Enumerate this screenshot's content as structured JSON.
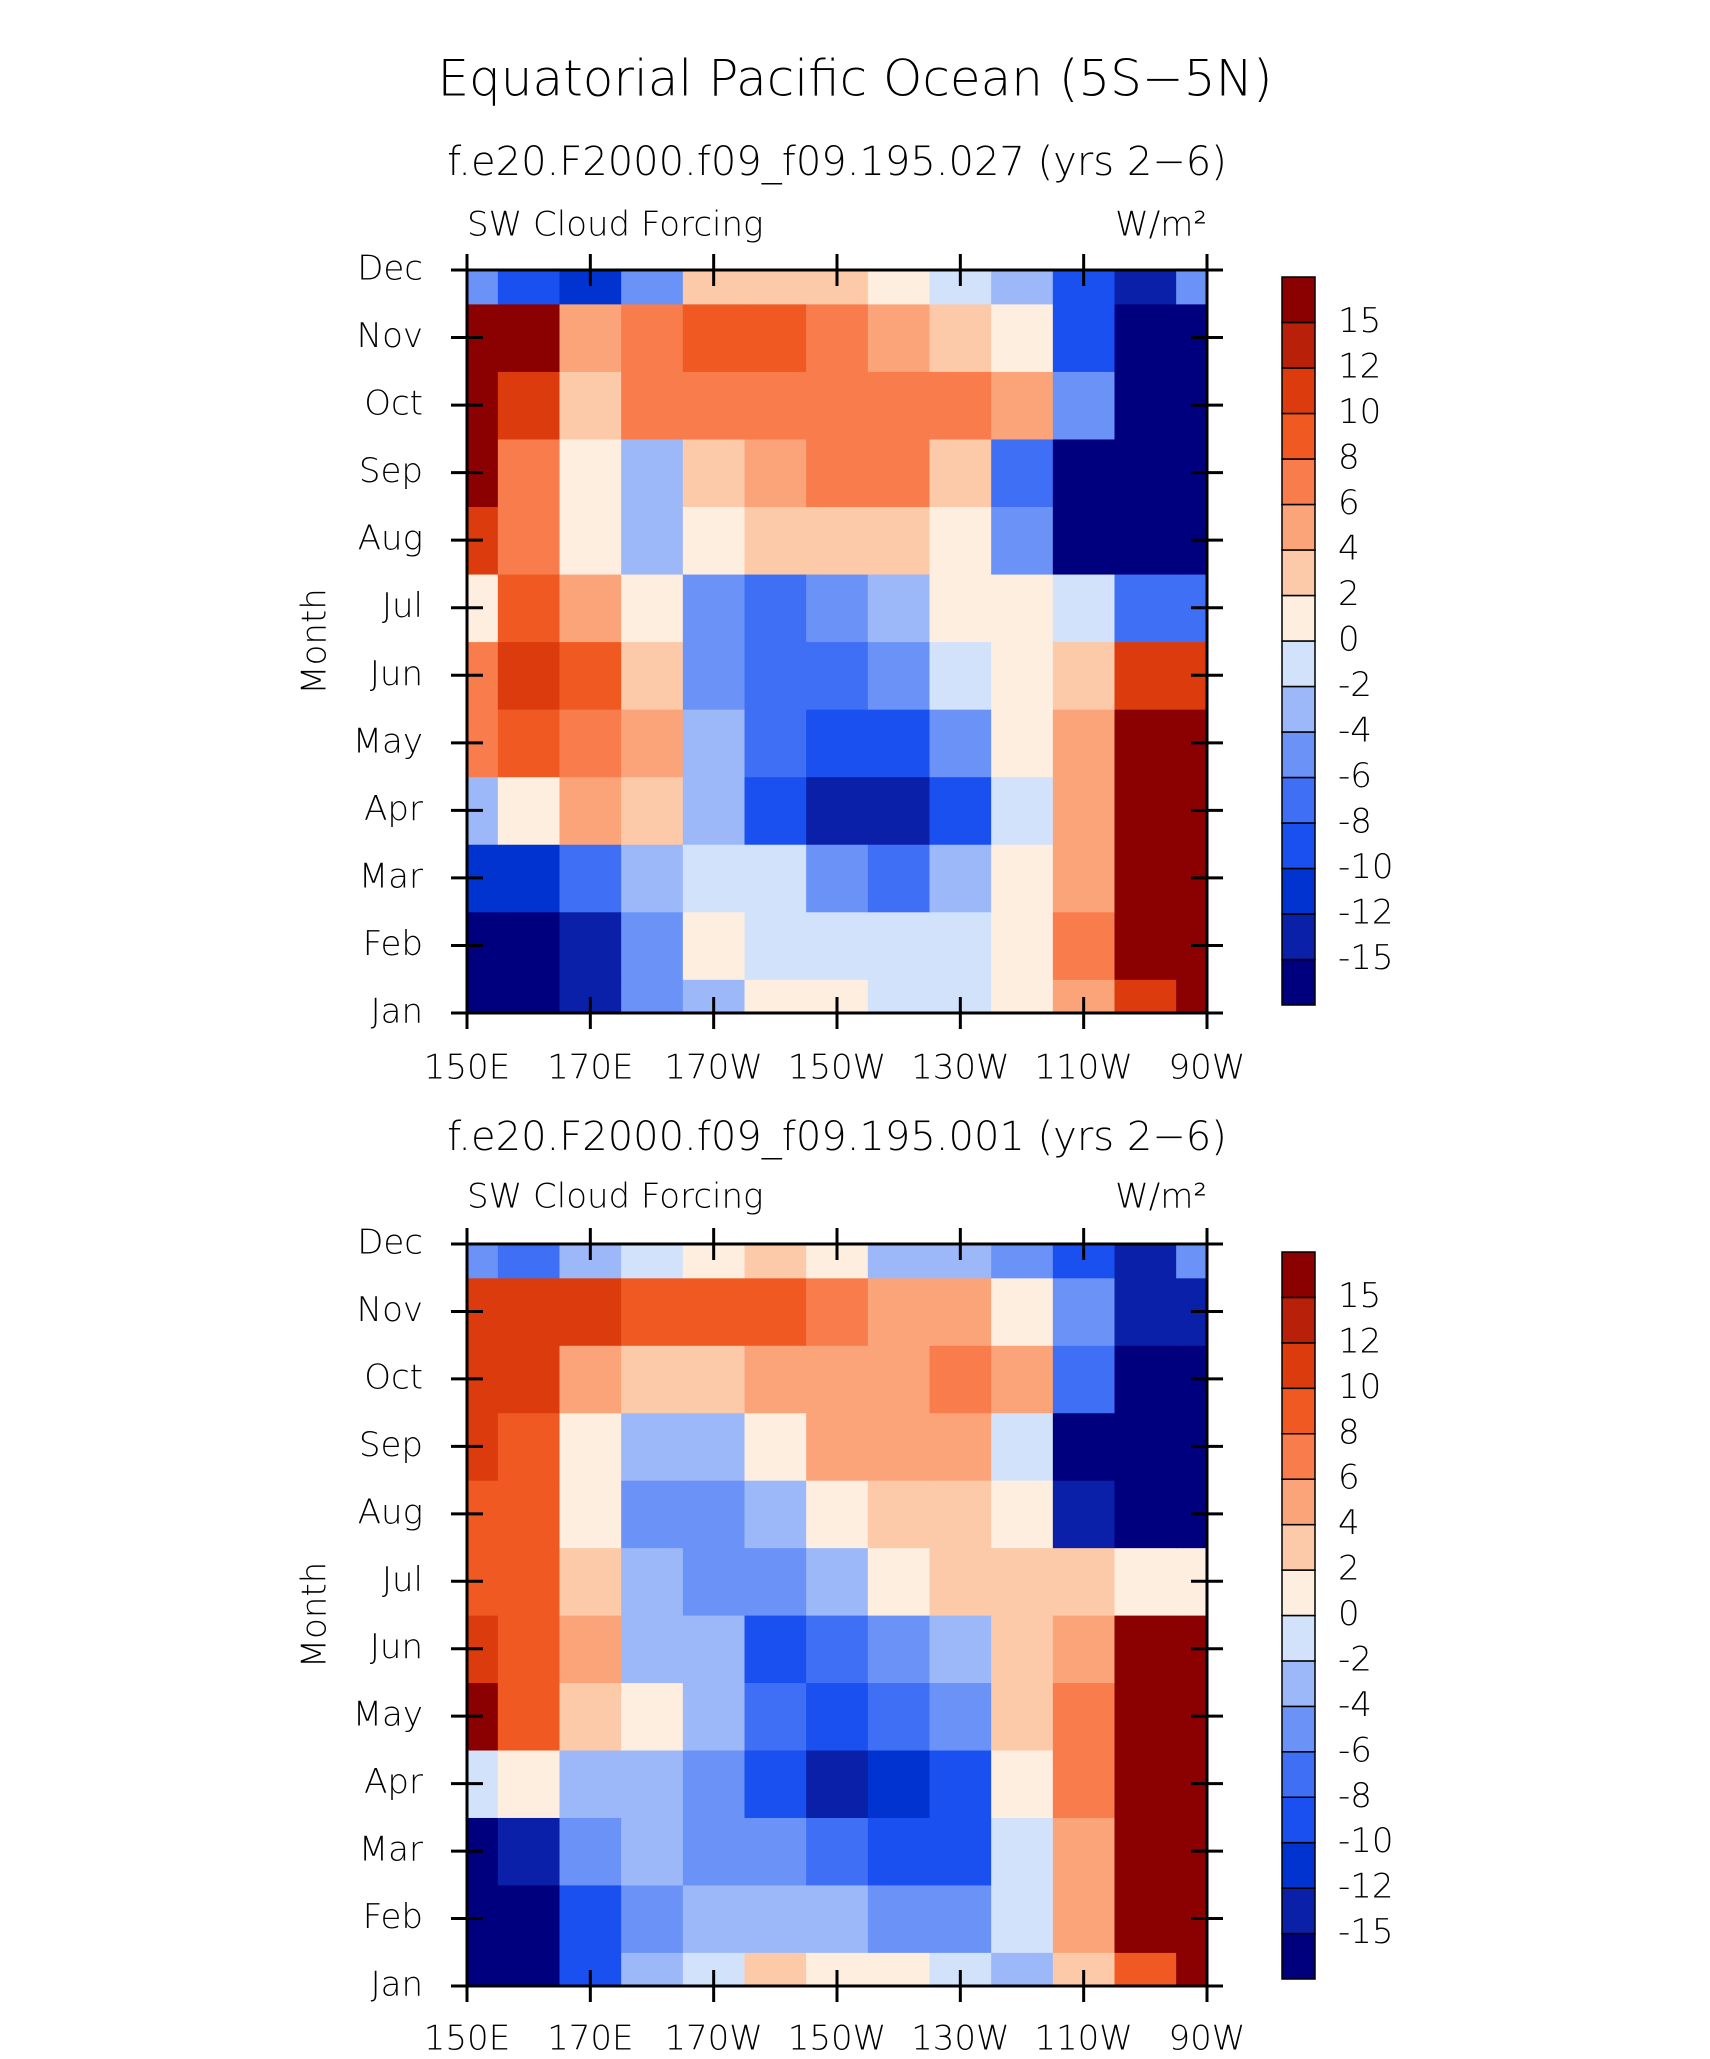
{
  "title": "Equatorial Pacific Ocean (5S−5N)",
  "chart_data": [
    {
      "type": "contour",
      "title": "f.e20.F2000.f09_f09.195.027 (yrs 2−6)",
      "left_label": "SW Cloud Forcing",
      "units": "W/m²",
      "ylabel": "Month",
      "x": [
        150,
        160,
        170,
        180,
        190,
        200,
        210,
        220,
        230,
        240,
        250,
        260,
        270
      ],
      "categories": [
        "Jan",
        "Feb",
        "Mar",
        "Apr",
        "May",
        "Jun",
        "Jul",
        "Aug",
        "Sep",
        "Oct",
        "Nov",
        "Dec"
      ],
      "values": [
        [
          -15,
          -15,
          -12,
          -4,
          -2,
          2,
          2,
          0,
          0,
          2,
          6,
          12,
          16
        ],
        [
          -15,
          -15,
          -12,
          -4,
          2,
          0,
          0,
          0,
          0,
          2,
          8,
          16,
          16
        ],
        [
          -10,
          -10,
          -6,
          -2,
          0,
          0,
          -4,
          -6,
          -2,
          2,
          6,
          16,
          16
        ],
        [
          -2,
          2,
          6,
          4,
          -2,
          -8,
          -12,
          -12,
          -8,
          0,
          6,
          16,
          16
        ],
        [
          8,
          10,
          8,
          6,
          -2,
          -6,
          -8,
          -8,
          -4,
          2,
          6,
          16,
          16
        ],
        [
          8,
          12,
          10,
          4,
          -4,
          -6,
          -6,
          -4,
          0,
          2,
          4,
          12,
          12
        ],
        [
          2,
          10,
          6,
          2,
          -4,
          -6,
          -4,
          -2,
          2,
          2,
          0,
          -6,
          -6
        ],
        [
          12,
          8,
          2,
          -2,
          2,
          4,
          4,
          4,
          2,
          -4,
          -15,
          -15,
          -15
        ],
        [
          16,
          8,
          2,
          -2,
          4,
          6,
          8,
          8,
          4,
          -6,
          -15,
          -15,
          -15
        ],
        [
          16,
          12,
          4,
          8,
          8,
          8,
          8,
          8,
          8,
          6,
          -4,
          -15,
          -15
        ],
        [
          16,
          16,
          6,
          8,
          10,
          10,
          8,
          6,
          4,
          2,
          -8,
          -15,
          -15
        ],
        [
          -4,
          -8,
          -10,
          -4,
          4,
          4,
          4,
          2,
          0,
          -2,
          -8,
          -12,
          -4
        ]
      ],
      "levels": [
        -15,
        -12,
        -10,
        -8,
        -6,
        -4,
        -2,
        0,
        2,
        4,
        6,
        8,
        10,
        12,
        15
      ],
      "colors": [
        "#00007f",
        "#0a20a8",
        "#0033d0",
        "#1a4ff0",
        "#3f6ff5",
        "#6b93f7",
        "#9cb8f9",
        "#d2e2fb",
        "#fdeedf",
        "#fcc9a9",
        "#fba47a",
        "#f87c4c",
        "#f05a22",
        "#dc3b0e",
        "#b8200a",
        "#8b0000"
      ],
      "xlim": [
        150,
        270
      ],
      "xticks": [
        {
          "value": 150,
          "label": "150E"
        },
        {
          "value": 170,
          "label": "170E"
        },
        {
          "value": 190,
          "label": "170W"
        },
        {
          "value": 210,
          "label": "150W"
        },
        {
          "value": 230,
          "label": "130W"
        },
        {
          "value": 250,
          "label": "110W"
        },
        {
          "value": 270,
          "label": "90W"
        }
      ]
    },
    {
      "type": "contour",
      "title": "f.e20.F2000.f09_f09.195.001 (yrs 2−6)",
      "left_label": "SW Cloud Forcing",
      "units": "W/m²",
      "ylabel": "Month",
      "x": [
        150,
        160,
        170,
        180,
        190,
        200,
        210,
        220,
        230,
        240,
        250,
        260,
        270
      ],
      "categories": [
        "Jan",
        "Feb",
        "Mar",
        "Apr",
        "May",
        "Jun",
        "Jul",
        "Aug",
        "Sep",
        "Oct",
        "Nov",
        "Dec"
      ],
      "values": [
        [
          -15,
          -15,
          -8,
          -2,
          0,
          4,
          2,
          2,
          0,
          -2,
          4,
          10,
          16
        ],
        [
          -15,
          -15,
          -8,
          -4,
          -2,
          -2,
          -2,
          -4,
          -4,
          0,
          6,
          16,
          16
        ],
        [
          -15,
          -12,
          -4,
          -2,
          -4,
          -4,
          -6,
          -8,
          -8,
          0,
          6,
          16,
          16
        ],
        [
          0,
          2,
          -2,
          -2,
          -4,
          -8,
          -12,
          -10,
          -8,
          2,
          8,
          16,
          16
        ],
        [
          16,
          10,
          4,
          2,
          -2,
          -6,
          -8,
          -6,
          -4,
          4,
          8,
          16,
          16
        ],
        [
          12,
          10,
          6,
          -2,
          -2,
          -8,
          -6,
          -4,
          -2,
          4,
          6,
          16,
          16
        ],
        [
          10,
          10,
          4,
          -2,
          -4,
          -4,
          -2,
          2,
          4,
          4,
          4,
          2,
          2
        ],
        [
          10,
          10,
          2,
          -4,
          -4,
          -2,
          2,
          4,
          4,
          2,
          -12,
          -15,
          -15
        ],
        [
          12,
          10,
          2,
          -2,
          -2,
          2,
          6,
          6,
          6,
          0,
          -15,
          -15,
          -15
        ],
        [
          12,
          12,
          6,
          4,
          4,
          6,
          6,
          6,
          8,
          6,
          -6,
          -15,
          -15
        ],
        [
          12,
          12,
          12,
          10,
          10,
          10,
          8,
          6,
          6,
          2,
          -4,
          -12,
          -12
        ],
        [
          -4,
          -6,
          -2,
          0,
          2,
          4,
          2,
          -2,
          -2,
          -4,
          -8,
          -12,
          -4
        ]
      ],
      "levels": [
        -15,
        -12,
        -10,
        -8,
        -6,
        -4,
        -2,
        0,
        2,
        4,
        6,
        8,
        10,
        12,
        15
      ],
      "colors": [
        "#00007f",
        "#0a20a8",
        "#0033d0",
        "#1a4ff0",
        "#3f6ff5",
        "#6b93f7",
        "#9cb8f9",
        "#d2e2fb",
        "#fdeedf",
        "#fcc9a9",
        "#fba47a",
        "#f87c4c",
        "#f05a22",
        "#dc3b0e",
        "#b8200a",
        "#8b0000"
      ],
      "xlim": [
        150,
        270
      ],
      "xticks": [
        {
          "value": 150,
          "label": "150E"
        },
        {
          "value": 170,
          "label": "170E"
        },
        {
          "value": 190,
          "label": "170W"
        },
        {
          "value": 210,
          "label": "150W"
        },
        {
          "value": 230,
          "label": "130W"
        },
        {
          "value": 250,
          "label": "110W"
        },
        {
          "value": 270,
          "label": "90W"
        }
      ]
    }
  ]
}
